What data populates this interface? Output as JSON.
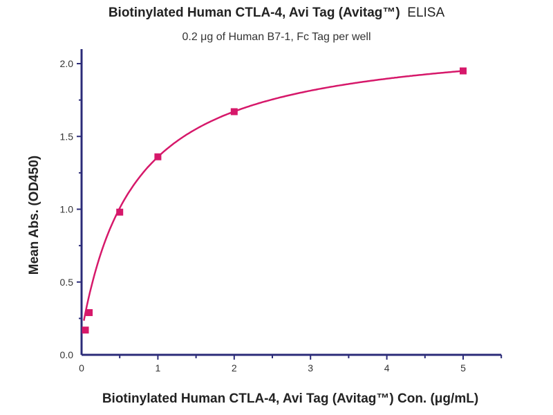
{
  "chart_data": {
    "type": "scatter",
    "title": "Biotinylated Human CTLA-4, Avi Tag (Avitag™)",
    "title_suffix": "ELISA",
    "subtitle": "0.2 μg of Human B7-1, Fc Tag per well",
    "xlabel": "Biotinylated Human CTLA-4, Avi Tag (Avitag™) Con. (μg/mL)",
    "ylabel": "Mean Abs. (OD450)",
    "xlim": [
      0,
      5.5
    ],
    "ylim": [
      0,
      2.1
    ],
    "xticks": [
      "0",
      "1",
      "2",
      "3",
      "4",
      "5"
    ],
    "yticks": [
      "0.0",
      "0.5",
      "1.0",
      "1.5",
      "2.0"
    ],
    "grid": false,
    "series": [
      {
        "x": [
          0.05,
          0.1,
          0.5,
          1,
          2,
          5
        ],
        "y": [
          0.17,
          0.29,
          0.98,
          1.36,
          1.67,
          1.95
        ],
        "fit_line": true
      }
    ],
    "colors": {
      "series": "#d6186a",
      "axis": "#2b2b78"
    }
  }
}
